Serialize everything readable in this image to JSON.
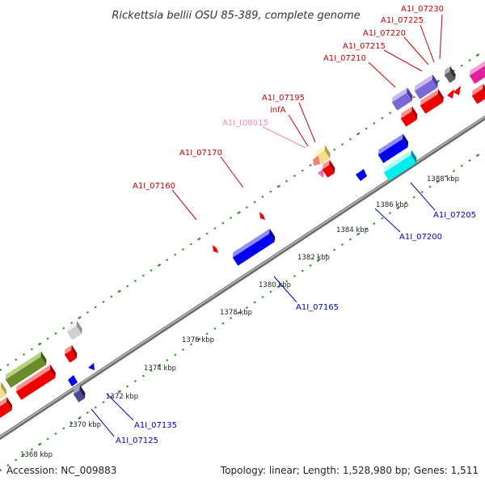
{
  "title": "Rickettsia bellii OSU 85-389, complete genome",
  "footer": {
    "accession": "Accession: NC_009883",
    "summary": "Topology: linear; Length: 1,528,980 bp; Genes: 1,511"
  },
  "colors": {
    "backbone": "#8c8c8c",
    "tick": "#2e8b2e",
    "forward_label": "#cc0000",
    "reverse_label": "#0000cc",
    "trna_label": "#ee88bb"
  },
  "scale": {
    "labels": [
      "1368 kbp",
      "1370 kbp",
      "1372 kbp",
      "1374 kbp",
      "1376 kbp",
      "1378 kbp",
      "1380 kbp",
      "1382 kbp",
      "1384 kbp",
      "1386 kbp",
      "1388 kbp"
    ]
  },
  "forward_labels": [
    {
      "text": "A1I_07230",
      "color": "#cc0000"
    },
    {
      "text": "A1I_07225",
      "color": "#cc0000"
    },
    {
      "text": "A1I_07220",
      "color": "#cc0000"
    },
    {
      "text": "A1I_07215",
      "color": "#cc0000"
    },
    {
      "text": "A1I_07210",
      "color": "#cc0000"
    },
    {
      "text": "A1I_07195",
      "color": "#cc0000"
    },
    {
      "text": "infA",
      "color": "#cc0000"
    },
    {
      "text": "A1I_t08015",
      "color": "#ee88bb"
    },
    {
      "text": "A1I_07170",
      "color": "#cc0000"
    },
    {
      "text": "A1I_07160",
      "color": "#cc0000"
    }
  ],
  "reverse_labels": [
    {
      "text": "A1I_07205",
      "color": "#0000cc"
    },
    {
      "text": "A1I_07200",
      "color": "#0000cc"
    },
    {
      "text": "A1I_07165",
      "color": "#0000cc"
    },
    {
      "text": "A1I_07135",
      "color": "#0000cc"
    },
    {
      "text": "A1I_07125",
      "color": "#0000cc"
    }
  ]
}
